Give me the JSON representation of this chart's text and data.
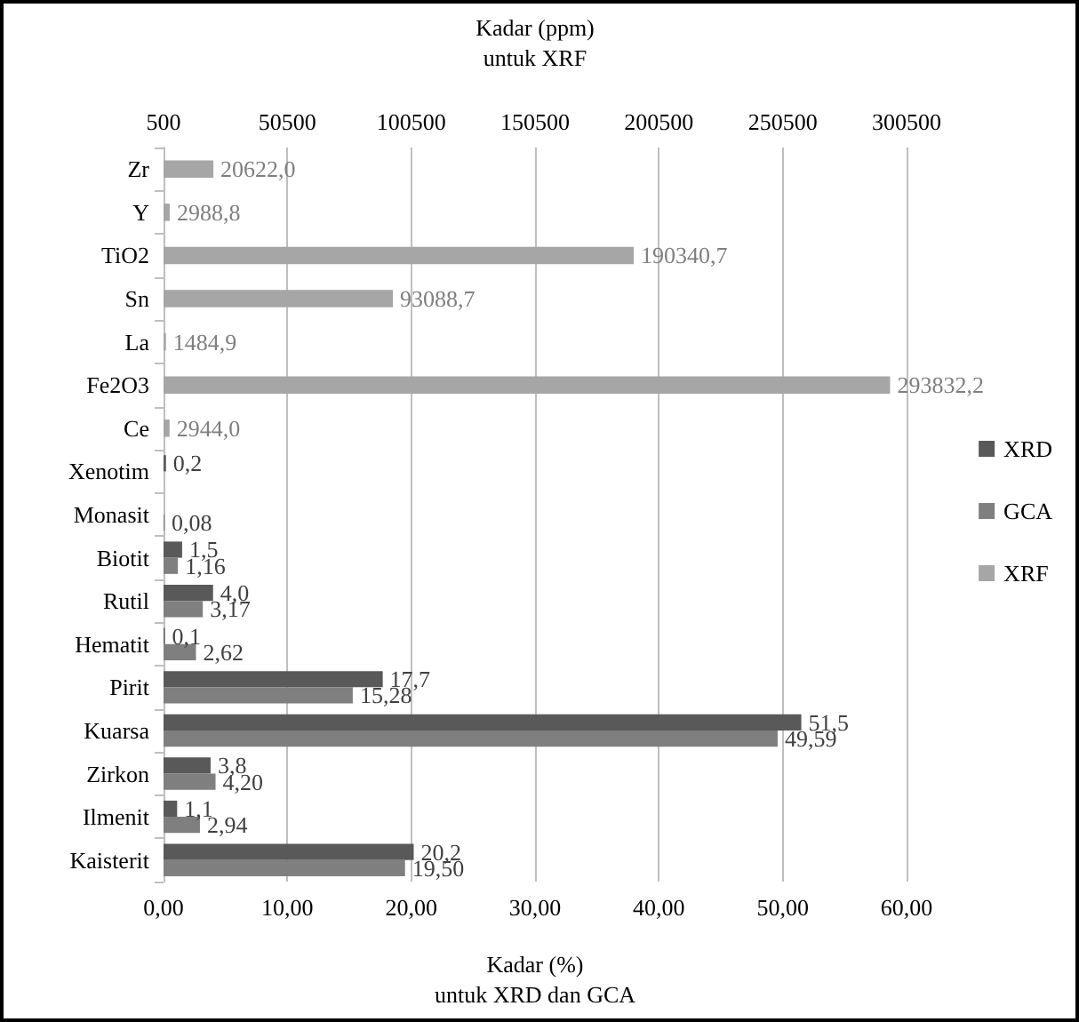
{
  "chart_data": {
    "type": "bar",
    "orientation": "horizontal",
    "xlabel": "Kadar (%)\nuntuk XRD dan GCA",
    "x2label": "Kadar (ppm)\nuntuk XRF",
    "categories": [
      "Zr",
      "Y",
      "TiO2",
      "Sn",
      "La",
      "Fe2O3",
      "Ce",
      "Xenotim",
      "Monasit",
      "Biotit",
      "Rutil",
      "Hematit",
      "Pirit",
      "Kuarsa",
      "Zirkon",
      "Ilmenit",
      "Kaisterit"
    ],
    "series": [
      {
        "name": "XRD",
        "color": "#595959",
        "values": [
          null,
          null,
          null,
          null,
          null,
          null,
          null,
          0.2,
          null,
          1.5,
          4.0,
          0.1,
          17.7,
          51.5,
          3.8,
          1.1,
          20.2
        ],
        "value_labels": [
          null,
          null,
          null,
          null,
          null,
          null,
          null,
          "0,2",
          null,
          "1,5",
          "4,0",
          "0,1",
          "17,7",
          "51,5",
          "3,8",
          "1,1",
          "20,2"
        ]
      },
      {
        "name": "GCA",
        "color": "#7f7f7f",
        "values": [
          null,
          null,
          null,
          null,
          null,
          null,
          null,
          null,
          0.08,
          1.16,
          3.17,
          2.62,
          15.28,
          49.59,
          4.2,
          2.94,
          19.5
        ],
        "value_labels": [
          null,
          null,
          null,
          null,
          null,
          null,
          null,
          null,
          "0,08",
          "1,16",
          "3,17",
          "2,62",
          "15,28",
          "49,59",
          "4,20",
          "2,94",
          "19,50"
        ]
      },
      {
        "name": "XRF",
        "color": "#a6a6a6",
        "axis": "x2",
        "values": [
          20622.0,
          2988.8,
          190340.7,
          93088.7,
          1484.9,
          293832.2,
          2944.0,
          null,
          null,
          null,
          null,
          null,
          null,
          null,
          null,
          null,
          null
        ],
        "value_labels": [
          "20622,0",
          "2988,8",
          "190340,7",
          "93088,7",
          "1484,9",
          "293832,2",
          "2944,0",
          null,
          null,
          null,
          null,
          null,
          null,
          null,
          null,
          null,
          null
        ]
      }
    ],
    "xlim": [
      0,
      60
    ],
    "xticks": [
      {
        "value": 0,
        "label": "0,00"
      },
      {
        "value": 10,
        "label": "10,00"
      },
      {
        "value": 20,
        "label": "20,00"
      },
      {
        "value": 30,
        "label": "30,00"
      },
      {
        "value": 40,
        "label": "40,00"
      },
      {
        "value": 50,
        "label": "50,00"
      },
      {
        "value": 60,
        "label": "60,00"
      }
    ],
    "x2lim": [
      500,
      300500
    ],
    "x2ticks": [
      500,
      50500,
      100500,
      150500,
      200500,
      250500,
      300500
    ],
    "grid": "x",
    "legend": "right"
  }
}
